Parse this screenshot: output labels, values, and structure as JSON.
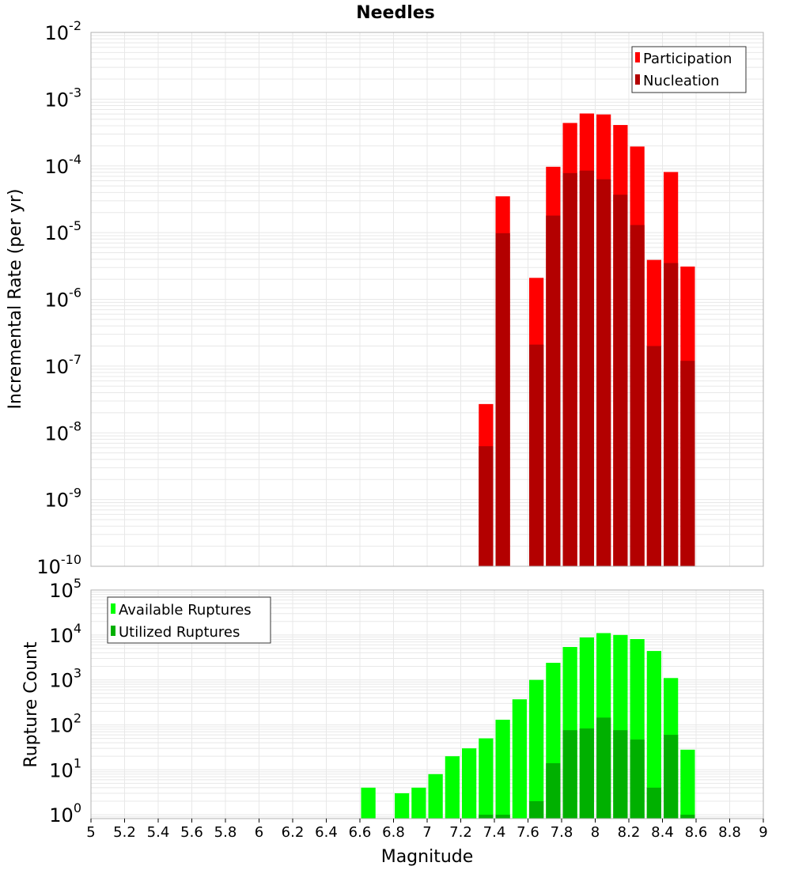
{
  "chart_data": [
    {
      "type": "bar",
      "title": "Needles",
      "xlabel": "Magnitude",
      "ylabel": "Incremental Rate (per yr)",
      "yscale": "log",
      "ylim": [
        1e-10,
        0.01
      ],
      "xlim": [
        5,
        9
      ],
      "grid": true,
      "legend_position": "top-right",
      "x": [
        7.35,
        7.45,
        7.65,
        7.75,
        7.85,
        7.95,
        8.05,
        8.15,
        8.25,
        8.35,
        8.45,
        8.55
      ],
      "series": [
        {
          "name": "Participation",
          "color": "#ff0000",
          "values": [
            2.7e-08,
            3.5e-05,
            2.1e-06,
            9.7e-05,
            0.00044,
            0.00061,
            0.00059,
            0.00041,
            0.000195,
            3.9e-06,
            8.1e-05,
            3.1e-06
          ]
        },
        {
          "name": "Nucleation",
          "color": "#b30000",
          "values": [
            6.3e-09,
            9.8e-06,
            2.1e-07,
            1.8e-05,
            7.8e-05,
            8.5e-05,
            6.3e-05,
            3.7e-05,
            1.3e-05,
            2e-07,
            3.5e-06,
            1.2e-07
          ]
        }
      ],
      "ytick_exponents": [
        -2,
        -3,
        -4,
        -5,
        -6,
        -7,
        -8,
        -9,
        -10
      ]
    },
    {
      "type": "bar",
      "xlabel": "Magnitude",
      "ylabel": "Rupture Count",
      "yscale": "log",
      "ylim": [
        0.82,
        100000.0
      ],
      "xlim": [
        5,
        9
      ],
      "grid": true,
      "legend_position": "top-left",
      "x": [
        6.65,
        6.85,
        6.95,
        7.05,
        7.15,
        7.25,
        7.35,
        7.45,
        7.55,
        7.65,
        7.75,
        7.85,
        7.95,
        8.05,
        8.15,
        8.25,
        8.35,
        8.45,
        8.55
      ],
      "series": [
        {
          "name": "Available Ruptures",
          "color": "#00ff00",
          "values": [
            4,
            3,
            4,
            8,
            20,
            30,
            50,
            130,
            370,
            1000,
            2400,
            5400,
            8800,
            11000,
            10000,
            8100,
            4400,
            1100,
            28
          ]
        },
        {
          "name": "Utilized Ruptures",
          "color": "#00b000",
          "values": [
            0,
            0,
            0,
            0,
            0,
            0,
            1,
            1,
            0,
            2,
            14,
            76,
            83,
            145,
            76,
            47,
            4,
            60,
            1
          ]
        }
      ],
      "ytick_exponents": [
        5,
        4,
        3,
        2,
        1,
        0
      ],
      "xticks": [
        "5",
        "5.2",
        "5.4",
        "5.6",
        "5.8",
        "6",
        "6.2",
        "6.4",
        "6.6",
        "6.8",
        "7",
        "7.2",
        "7.4",
        "7.6",
        "7.8",
        "8",
        "8.2",
        "8.4",
        "8.6",
        "8.8",
        "9"
      ]
    }
  ],
  "tick_base": "10"
}
